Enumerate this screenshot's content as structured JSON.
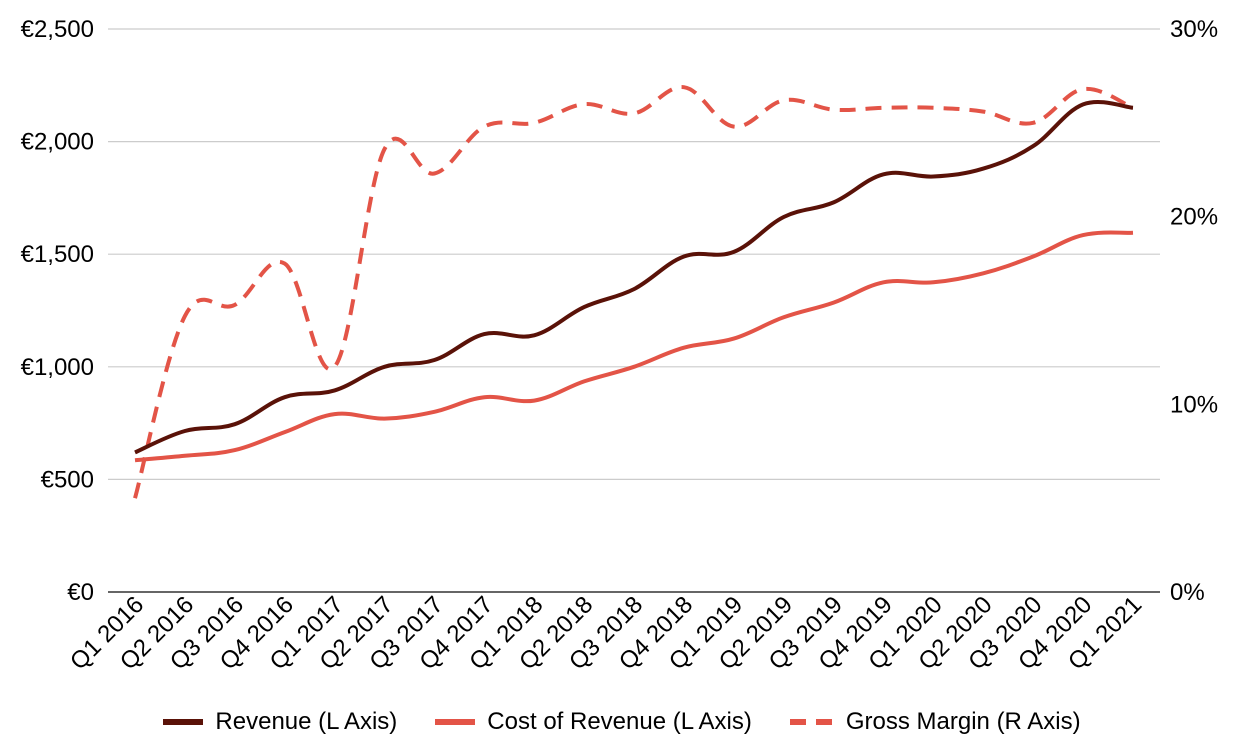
{
  "chart_data": {
    "type": "line",
    "categories": [
      "Q1 2016",
      "Q2 2016",
      "Q3 2016",
      "Q4 2016",
      "Q1 2017",
      "Q2 2017",
      "Q3 2017",
      "Q4 2017",
      "Q1 2018",
      "Q2 2018",
      "Q3 2018",
      "Q4 2018",
      "Q1 2019",
      "Q2 2019",
      "Q3 2019",
      "Q4 2019",
      "Q1 2020",
      "Q2 2020",
      "Q3 2020",
      "Q4 2020",
      "Q1 2021"
    ],
    "left_axis": {
      "ylim": [
        0,
        2500
      ],
      "ticks": [
        "€0",
        "€500",
        "€1,000",
        "€1,500",
        "€2,000",
        "€2,500"
      ]
    },
    "right_axis": {
      "ylim": [
        0,
        30
      ],
      "ticks": [
        "0%",
        "10%",
        "20%",
        "30%"
      ]
    },
    "grid": "horizontal",
    "legend_position": "bottom",
    "series": [
      {
        "name": "Revenue (L Axis)",
        "axis": "left",
        "style": "solid",
        "color": "#5a1208",
        "values": [
          620,
          715,
          745,
          865,
          895,
          1000,
          1030,
          1145,
          1140,
          1265,
          1345,
          1490,
          1510,
          1665,
          1730,
          1855,
          1845,
          1880,
          1980,
          2165,
          2150
        ]
      },
      {
        "name": "Cost of Revenue (L Axis)",
        "axis": "left",
        "style": "solid",
        "color": "#e35447",
        "values": [
          585,
          605,
          630,
          710,
          790,
          770,
          800,
          865,
          850,
          935,
          1000,
          1085,
          1125,
          1220,
          1285,
          1375,
          1375,
          1415,
          1490,
          1585,
          1595
        ]
      },
      {
        "name": "Gross Margin (R Axis)",
        "axis": "right",
        "style": "dashed",
        "color": "#e35447",
        "values": [
          5.0,
          14.7,
          15.3,
          17.5,
          12.0,
          23.6,
          22.3,
          24.8,
          25.0,
          26.0,
          25.5,
          26.9,
          24.8,
          26.2,
          25.7,
          25.8,
          25.8,
          25.6,
          25.0,
          26.8,
          25.8
        ]
      }
    ]
  }
}
